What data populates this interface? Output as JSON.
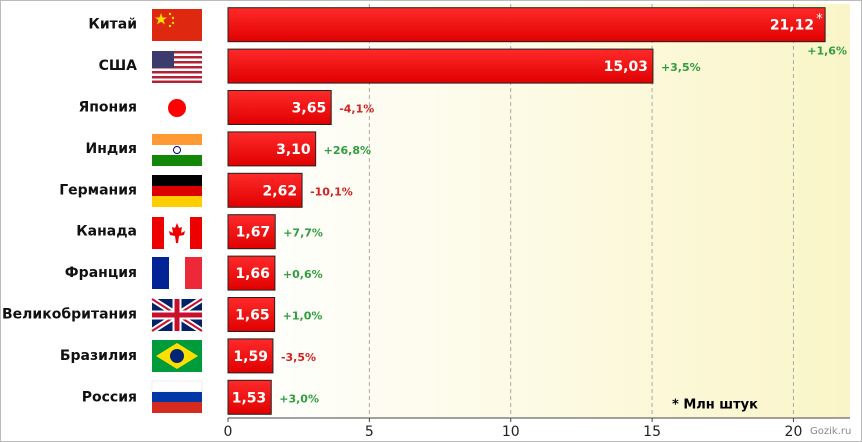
{
  "chart_data": {
    "type": "bar",
    "orientation": "horizontal",
    "categories": [
      "Китай",
      "США",
      "Япония",
      "Индия",
      "Германия",
      "Канада",
      "Франция",
      "Великобритания",
      "Бразилия",
      "Россия"
    ],
    "values": [
      21.12,
      15.03,
      3.65,
      3.1,
      2.62,
      1.67,
      1.66,
      1.65,
      1.59,
      1.53
    ],
    "value_labels": [
      "21,12",
      "15,03",
      "3,65",
      "3,10",
      "2,62",
      "1,67",
      "1,66",
      "1,65",
      "1,59",
      "1,53"
    ],
    "footnote_mark": "*",
    "changes": [
      "+1,6%",
      "+3,5%",
      "-4,1%",
      "+26,8%",
      "-10,1%",
      "+7,7%",
      "+0,6%",
      "+1,0%",
      "-3,5%",
      "+3,0%"
    ],
    "color": "#ff0000",
    "positive_color": "#2e9e3e",
    "negative_color": "#d42020",
    "xlim": [
      0,
      22
    ],
    "xticks": [
      0,
      5,
      10,
      15,
      20
    ],
    "grid": true,
    "note": "* Млн штук",
    "watermark": "Gozik.ru"
  }
}
